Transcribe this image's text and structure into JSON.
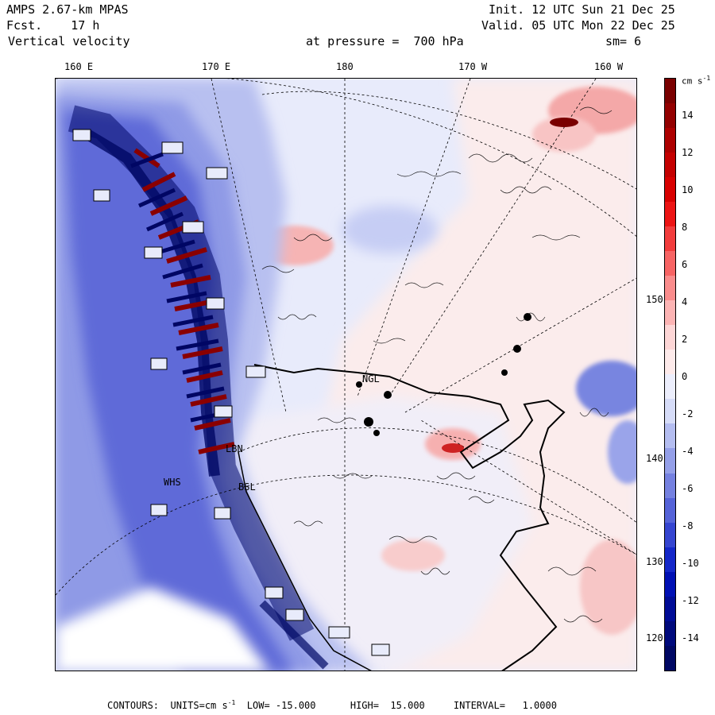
{
  "header": {
    "model": "AMPS 2.67-km MPAS",
    "forecast": "Fcst.    17 h",
    "field": "Vertical velocity",
    "init": "Init. 12 UTC Sun 21 Dec 25",
    "valid": "Valid. 05 UTC Mon 22 Dec 25",
    "pressure": "at pressure =  700 hPa",
    "smooth": "sm= 6"
  },
  "lon_labels": [
    "160 E",
    "170 E",
    "180",
    "170 W",
    "160 W"
  ],
  "lat_labels": [
    "150 W",
    "140 W",
    "130 W",
    "120 W"
  ],
  "colorbar": {
    "units": "cm s",
    "units_sup": "-1",
    "labels": [
      "14",
      "12",
      "10",
      "8",
      "6",
      "4",
      "2",
      "0",
      "-2",
      "-4",
      "-6",
      "-8",
      "-10",
      "-12",
      "-14"
    ],
    "colors": [
      "#7a0000",
      "#930000",
      "#ad0000",
      "#c40000",
      "#d80000",
      "#ec1414",
      "#f23c3c",
      "#f76464",
      "#fa8c8c",
      "#fcb4b4",
      "#fdd6d6",
      "#fdeaea",
      "#eceefc",
      "#d6dcf8",
      "#b4bdf0",
      "#949fe8",
      "#7581e0",
      "#5563d8",
      "#3545d0",
      "#1427c8",
      "#0010b4",
      "#000c96",
      "#000a7c",
      "#000864"
    ]
  },
  "station_labels": [
    "NGL",
    "LBN",
    "WHS",
    "BSL"
  ],
  "footer": {
    "contours": "CONTOURS:  UNITS=cm s",
    "units_sup": "-1",
    "rest": "  LOW= -15.000      HIGH=  15.000     INTERVAL=   1.0000"
  }
}
